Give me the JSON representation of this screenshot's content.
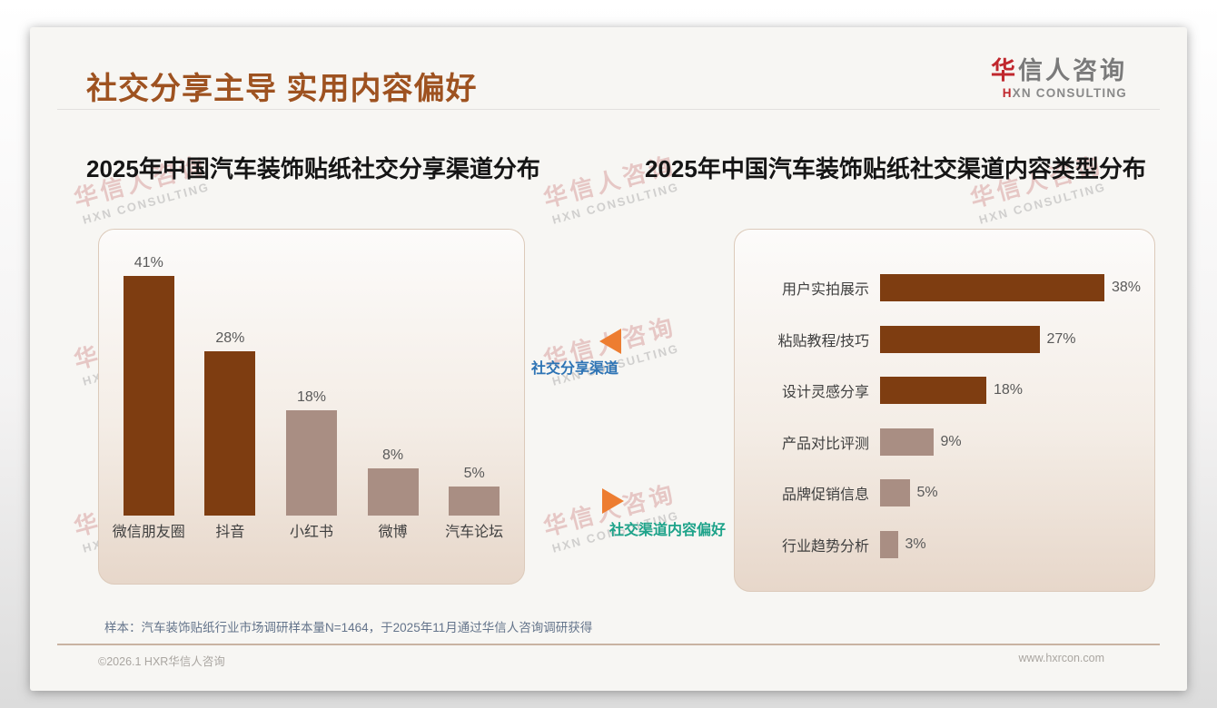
{
  "header": {
    "title": "社交分享主导 实用内容偏好",
    "logo": {
      "cn_first": "华",
      "cn_rest": "信人咨询",
      "en_first": "H",
      "en_rest": "XN CONSULTING"
    }
  },
  "annotations": {
    "left_pointer_label": "社交分享渠道",
    "right_pointer_label": "社交渠道内容偏好"
  },
  "watermark": {
    "line1": "华信人咨询",
    "line2": "HXN CONSULTING"
  },
  "footnote": {
    "sample_note": "样本：汽车装饰贴纸行业市场调研样本量N=1464，于2025年11月通过华信人咨询调研获得"
  },
  "footer": {
    "copyright": "©2026.1 HXR华信人咨询",
    "website": "www.hxrcon.com"
  },
  "colors": {
    "title_accent": "#9E5220",
    "dark_bar": "#7E3D11",
    "light_bar": "#A98E83",
    "pointer_triangle": "#ED7D31",
    "left_pointer_text": "#2E74B5",
    "right_pointer_text": "#1EA38A",
    "logo_red": "#C0272D",
    "card_border": "#DCCABA"
  },
  "chart_data": [
    {
      "type": "bar",
      "orientation": "vertical",
      "title": "2025年中国汽车装饰贴纸社交分享渠道分布",
      "categories": [
        "微信朋友圈",
        "抖音",
        "小红书",
        "微博",
        "汽车论坛"
      ],
      "values": [
        41,
        28,
        18,
        8,
        5
      ],
      "unit": "%",
      "value_labels": [
        "41%",
        "28%",
        "18%",
        "8%",
        "5%"
      ],
      "bar_colors": [
        "#7E3D11",
        "#7E3D11",
        "#A98E83",
        "#A98E83",
        "#A98E83"
      ],
      "ylim": [
        0,
        45
      ],
      "grid": false,
      "legend": null
    },
    {
      "type": "bar",
      "orientation": "horizontal",
      "title": "2025年中国汽车装饰贴纸社交渠道内容类型分布",
      "categories": [
        "用户实拍展示",
        "粘贴教程/技巧",
        "设计灵感分享",
        "产品对比评测",
        "品牌促销信息",
        "行业趋势分析"
      ],
      "values": [
        38,
        27,
        18,
        9,
        5,
        3
      ],
      "unit": "%",
      "value_labels": [
        "38%",
        "27%",
        "18%",
        "9%",
        "5%",
        "3%"
      ],
      "bar_colors": [
        "#7E3D11",
        "#7E3D11",
        "#7E3D11",
        "#A98E83",
        "#A98E83",
        "#A98E83"
      ],
      "xlim": [
        0,
        40
      ],
      "grid": false,
      "legend": null
    }
  ]
}
